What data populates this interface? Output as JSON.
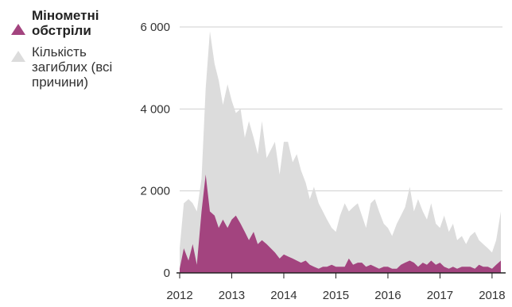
{
  "legend": [
    {
      "label": "Мінометні обстріли",
      "color": "#a3447f"
    },
    {
      "label": "Кількість загиблих (всі причини)",
      "color": "#dcdcdc"
    }
  ],
  "chart_data": {
    "type": "area",
    "title": "",
    "xlabel": "",
    "ylabel": "",
    "ylim": [
      0,
      6000
    ],
    "y_ticks": [
      0,
      2000,
      4000,
      6000
    ],
    "y_tick_labels": [
      "0",
      "2 000",
      "4 000",
      "6 000"
    ],
    "x_range": [
      2012.0,
      2018.2
    ],
    "x_ticks": [
      2012,
      2013,
      2014,
      2015,
      2016,
      2017,
      2018
    ],
    "x_tick_labels": [
      "2012",
      "2013",
      "2014",
      "2015",
      "2016",
      "2017",
      "2018"
    ],
    "grid": true,
    "legend_position": "top-left",
    "x": [
      2012.0,
      2012.08,
      2012.17,
      2012.25,
      2012.33,
      2012.42,
      2012.5,
      2012.58,
      2012.67,
      2012.75,
      2012.83,
      2012.92,
      2013.0,
      2013.08,
      2013.17,
      2013.25,
      2013.33,
      2013.42,
      2013.5,
      2013.58,
      2013.67,
      2013.75,
      2013.83,
      2013.92,
      2014.0,
      2014.08,
      2014.17,
      2014.25,
      2014.33,
      2014.42,
      2014.5,
      2014.58,
      2014.67,
      2014.75,
      2014.83,
      2014.92,
      2015.0,
      2015.08,
      2015.17,
      2015.25,
      2015.33,
      2015.42,
      2015.5,
      2015.58,
      2015.67,
      2015.75,
      2015.83,
      2015.92,
      2016.0,
      2016.08,
      2016.17,
      2016.25,
      2016.33,
      2016.42,
      2016.5,
      2016.58,
      2016.67,
      2016.75,
      2016.83,
      2016.92,
      2017.0,
      2017.08,
      2017.17,
      2017.25,
      2017.33,
      2017.42,
      2017.5,
      2017.58,
      2017.67,
      2017.75,
      2017.83,
      2017.92,
      2018.0,
      2018.08,
      2018.17
    ],
    "series": [
      {
        "name": "Кількість загиблих (всі причини)",
        "color": "#dcdcdc",
        "values": [
          600,
          1700,
          1800,
          1700,
          1500,
          2300,
          4500,
          5900,
          5100,
          4700,
          4100,
          4600,
          4200,
          3900,
          4000,
          3300,
          3700,
          3300,
          2900,
          3700,
          2800,
          3000,
          3200,
          2400,
          3200,
          3200,
          2700,
          2900,
          2500,
          2200,
          1800,
          2100,
          1700,
          1500,
          1300,
          1100,
          1000,
          1400,
          1700,
          1500,
          1600,
          1700,
          1400,
          1100,
          1700,
          1800,
          1500,
          1200,
          1100,
          900,
          1200,
          1400,
          1600,
          2100,
          1500,
          1800,
          1500,
          1300,
          1700,
          1200,
          1100,
          1400,
          1000,
          1200,
          800,
          900,
          700,
          900,
          1000,
          800,
          700,
          600,
          500,
          800,
          1500
        ]
      },
      {
        "name": "Мінометні обстріли",
        "color": "#a3447f",
        "values": [
          100,
          600,
          300,
          700,
          200,
          1500,
          2400,
          1500,
          1400,
          1100,
          1300,
          1100,
          1300,
          1400,
          1200,
          1000,
          800,
          1000,
          700,
          800,
          700,
          600,
          500,
          350,
          450,
          400,
          350,
          300,
          250,
          300,
          200,
          150,
          100,
          150,
          150,
          200,
          150,
          150,
          150,
          350,
          200,
          250,
          250,
          150,
          200,
          150,
          100,
          150,
          150,
          100,
          100,
          200,
          250,
          300,
          250,
          150,
          250,
          200,
          300,
          200,
          250,
          150,
          100,
          150,
          100,
          150,
          150,
          150,
          100,
          200,
          150,
          150,
          100,
          200,
          300
        ]
      }
    ]
  }
}
